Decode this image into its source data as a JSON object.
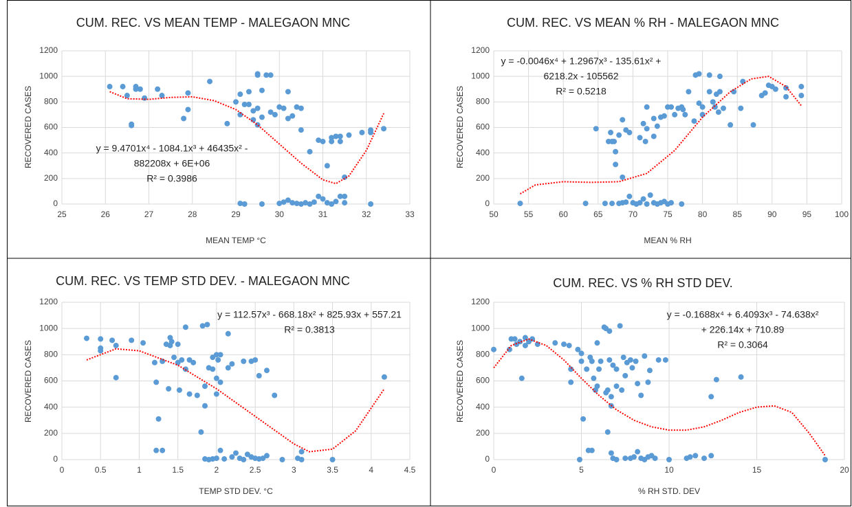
{
  "chart_data": [
    {
      "type": "scatter",
      "title": "CUM. REC. VS MEAN TEMP - MALEGAON MNC",
      "x_label": "MEAN TEMP °C",
      "y_label": "RECOVERED  CASES",
      "equation": [
        "y = 9.4701x⁴ - 1084.1x³ + 46435x² -",
        "882208x + 6E+06",
        "R² = 0.3986"
      ],
      "color": "#5b9bd5",
      "grid": true,
      "x": [
        26.1,
        26.4,
        26.5,
        26.6,
        26.6,
        26.7,
        26.7,
        26.8,
        26.9,
        27.2,
        27.3,
        27.8,
        27.9,
        27.9,
        28.4,
        28.8,
        29,
        29.1,
        29.1,
        29.2,
        29.3,
        29.3,
        29.4,
        29.4,
        29.5,
        29.5,
        29.5,
        29.5,
        29.6,
        29.6,
        29.7,
        29.8,
        29.8,
        29.9,
        30,
        30.1,
        30.2,
        30.2,
        30.3,
        30.4,
        30.5,
        30.5,
        30.7,
        30.9,
        31,
        31.1,
        31.2,
        31.2,
        31.3,
        31.4,
        31.4,
        31.5,
        31.6,
        31.9,
        32.1,
        32.1,
        32.4,
        29.1,
        29.2,
        29.6,
        30,
        30.1,
        30.2,
        30.3,
        30.4,
        30.5,
        30.6,
        30.7,
        30.8,
        30.9,
        31,
        31.1,
        31.2,
        31.3,
        31.4,
        31.5,
        31.5,
        32.1
      ],
      "values": [
        920,
        920,
        850,
        625,
        615,
        920,
        900,
        900,
        830,
        900,
        850,
        670,
        740,
        870,
        960,
        630,
        800,
        860,
        700,
        780,
        880,
        780,
        730,
        660,
        1010,
        1020,
        750,
        620,
        890,
        680,
        1010,
        720,
        1010,
        700,
        760,
        750,
        670,
        880,
        690,
        760,
        750,
        580,
        410,
        500,
        490,
        300,
        520,
        490,
        530,
        490,
        530,
        210,
        540,
        560,
        560,
        580,
        590,
        5,
        0,
        0,
        5,
        15,
        30,
        10,
        5,
        0,
        10,
        0,
        15,
        60,
        40,
        10,
        0,
        20,
        60,
        60,
        10,
        0
      ],
      "trendline": {
        "color": "#ff0000",
        "x": [
          26.1,
          26.5,
          27,
          27.5,
          28,
          28.5,
          29,
          29.5,
          30,
          30.5,
          31,
          31.3,
          31.6,
          32,
          32.4
        ],
        "values": [
          880,
          825,
          820,
          835,
          840,
          810,
          740,
          620,
          470,
          320,
          190,
          160,
          220,
          420,
          710
        ]
      },
      "xlim": [
        25,
        33
      ],
      "xticks": [
        25,
        26,
        27,
        28,
        29,
        30,
        31,
        32,
        33
      ],
      "ylim": [
        0,
        1200
      ],
      "yticks": [
        0,
        200,
        400,
        600,
        800,
        1000,
        1200
      ]
    },
    {
      "type": "scatter",
      "title": "CUM. REC. VS MEAN % RH - MALEGAON MNC",
      "x_label": "MEAN % RH",
      "y_label": "RECOVERED  CASES",
      "equation": [
        "y = -0.0046x⁴ + 1.2967x³ - 135.61x² +",
        "6218.2x - 105562",
        "R² = 0.5218"
      ],
      "color": "#5b9bd5",
      "grid": true,
      "x": [
        53.8,
        63.2,
        66,
        67,
        68,
        68.5,
        69,
        69.5,
        70,
        70.5,
        71,
        71.5,
        72,
        72.5,
        73,
        73.5,
        74,
        74.5,
        75,
        75.5,
        77,
        64.7,
        66.5,
        66.8,
        67,
        67.3,
        67.5,
        67.5,
        68,
        68.5,
        68.5,
        69,
        69.5,
        71,
        71.5,
        71.8,
        72,
        72,
        73,
        73,
        73.5,
        74,
        74.5,
        75,
        75.5,
        76,
        76.5,
        77,
        77.2,
        77.5,
        78,
        78.8,
        79,
        79.5,
        79.5,
        80,
        80,
        81,
        81,
        81.5,
        81.8,
        82,
        82.3,
        82.5,
        82.5,
        83,
        84,
        84.5,
        85.5,
        85.8,
        87.3,
        88.5,
        89,
        89.5,
        90,
        90.5,
        92,
        92,
        94.2,
        94.2
      ],
      "values": [
        5,
        5,
        5,
        5,
        5,
        10,
        15,
        60,
        10,
        0,
        10,
        40,
        0,
        70,
        10,
        0,
        10,
        20,
        0,
        10,
        0,
        590,
        490,
        560,
        490,
        490,
        410,
        310,
        540,
        660,
        210,
        580,
        560,
        520,
        630,
        490,
        590,
        760,
        530,
        670,
        610,
        680,
        690,
        760,
        760,
        700,
        750,
        760,
        740,
        700,
        880,
        650,
        1010,
        1020,
        790,
        760,
        700,
        1010,
        880,
        800,
        760,
        860,
        720,
        1000,
        880,
        750,
        620,
        880,
        750,
        960,
        620,
        850,
        870,
        930,
        920,
        900,
        840,
        910,
        850,
        920
      ],
      "trendline": {
        "color": "#ff0000",
        "x": [
          53.8,
          56,
          60,
          64,
          68,
          72,
          76,
          80,
          84,
          87,
          89.5,
          92,
          94.2
        ],
        "values": [
          80,
          150,
          175,
          170,
          175,
          240,
          420,
          680,
          880,
          980,
          1000,
          920,
          770
        ]
      },
      "xlim": [
        50,
        100
      ],
      "xticks": [
        50,
        55,
        60,
        65,
        70,
        75,
        80,
        85,
        90,
        95,
        100
      ],
      "ylim": [
        0,
        1200
      ],
      "yticks": [
        0,
        200,
        400,
        600,
        800,
        1000,
        1200
      ]
    },
    {
      "type": "scatter",
      "title": "CUM. REC. VS TEMP STD DEV.  - MALEGAON MNC",
      "x_label": "TEMP STD DEV. °C",
      "y_label": "RECOVERED  CASES",
      "equation": [
        "y = 112.57x³ - 668.18x² + 825.93x + 557.21",
        "R² = 0.3813"
      ],
      "color": "#5b9bd5",
      "grid": true,
      "x": [
        0.32,
        0.5,
        0.5,
        0.5,
        0.65,
        0.7,
        0.7,
        0.9,
        1.05,
        1.2,
        1.22,
        1.25,
        1.22,
        1.3,
        1.3,
        1.35,
        1.38,
        1.4,
        1.4,
        1.42,
        1.45,
        1.5,
        1.5,
        1.52,
        1.55,
        1.6,
        1.6,
        1.65,
        1.65,
        1.7,
        1.75,
        1.8,
        1.82,
        1.85,
        1.85,
        1.88,
        1.9,
        1.95,
        1.95,
        2,
        2,
        2,
        2.02,
        2.05,
        2.05,
        2.15,
        2.15,
        2.2,
        2.35,
        2.45,
        2.5,
        2.55,
        2.65,
        2.75,
        4.17,
        1.85,
        1.9,
        1.95,
        2.0,
        2.05,
        2.1,
        2.2,
        2.25,
        2.3,
        2.35,
        2.4,
        2.45,
        2.5,
        2.55,
        2.6,
        2.65,
        2.85,
        3.05,
        3.1,
        3.1,
        3.5
      ],
      "values": [
        925,
        920,
        850,
        830,
        910,
        870,
        625,
        910,
        890,
        740,
        590,
        310,
        70,
        70,
        750,
        880,
        540,
        930,
        870,
        900,
        780,
        880,
        740,
        530,
        760,
        1010,
        690,
        760,
        500,
        740,
        490,
        210,
        1020,
        560,
        410,
        1030,
        700,
        690,
        780,
        800,
        620,
        500,
        760,
        800,
        590,
        960,
        700,
        730,
        750,
        750,
        760,
        640,
        680,
        490,
        630,
        5,
        0,
        5,
        10,
        70,
        5,
        20,
        50,
        10,
        0,
        40,
        20,
        10,
        5,
        10,
        30,
        0,
        10,
        60,
        0,
        0
      ],
      "trendline": {
        "color": "#ff0000",
        "x": [
          0.32,
          0.7,
          1.0,
          1.5,
          2,
          2.5,
          3,
          3.2,
          3.5,
          3.8,
          4.17
        ],
        "values": [
          760,
          845,
          830,
          720,
          540,
          330,
          120,
          60,
          80,
          220,
          540
        ]
      },
      "xlim": [
        0,
        4.5
      ],
      "xticks": [
        0,
        0.5,
        1,
        1.5,
        2,
        2.5,
        3,
        3.5,
        4,
        4.5
      ],
      "ylim": [
        0,
        1200
      ],
      "yticks": [
        0,
        200,
        400,
        600,
        800,
        1000,
        1200
      ]
    },
    {
      "type": "scatter",
      "title": "CUM. REC. VS % RH STD DEV.",
      "x_label": "% RH STD. DEV",
      "y_label": "RECOVERED  CASES",
      "equation": [
        "y = -0.1688x⁴ + 6.4093x³ - 74.638x²",
        "+ 226.14x + 710.89",
        "R² = 0.3064"
      ],
      "color": "#5b9bd5",
      "grid": true,
      "x": [
        0,
        0.9,
        1,
        1.2,
        1.3,
        1.5,
        1.6,
        1.8,
        2,
        2.2,
        2.5,
        3.5,
        4,
        4.3,
        4.4,
        4.4,
        4.8,
        5,
        5,
        5.1,
        5.3,
        5.5,
        5.6,
        5.7,
        5.8,
        5.9,
        5.9,
        6,
        6.1,
        6.3,
        6.4,
        6.4,
        6.5,
        6.6,
        6.6,
        6.5,
        6.7,
        6.7,
        6.8,
        7,
        7,
        7.3,
        7.4,
        7.5,
        7.6,
        7.8,
        7.9,
        8.1,
        8.2,
        8.4,
        8.6,
        8.8,
        8.9,
        9.4,
        9.8,
        12.4,
        12.7,
        14.1,
        7.2,
        1.8,
        4.9,
        5.4,
        5.6,
        6.7,
        6.8,
        7,
        7.5,
        7.8,
        8,
        8.2,
        8.4,
        8.6,
        8.8,
        9,
        9.2,
        10,
        11,
        11.2,
        11.5,
        12,
        12.4,
        18.9
      ],
      "values": [
        840,
        840,
        920,
        920,
        880,
        900,
        620,
        930,
        900,
        920,
        880,
        890,
        880,
        870,
        590,
        690,
        840,
        750,
        810,
        310,
        690,
        780,
        750,
        620,
        530,
        560,
        890,
        690,
        750,
        1010,
        1000,
        510,
        210,
        760,
        980,
        530,
        480,
        410,
        720,
        560,
        690,
        530,
        780,
        640,
        740,
        760,
        700,
        750,
        580,
        490,
        790,
        590,
        680,
        760,
        760,
        480,
        610,
        630,
        1020,
        870,
        0,
        70,
        70,
        50,
        10,
        0,
        10,
        10,
        20,
        60,
        10,
        0,
        20,
        30,
        10,
        0,
        10,
        20,
        30,
        10,
        30,
        0
      ],
      "trendline": {
        "color": "#ff0000",
        "x": [
          0,
          1,
          2,
          3,
          4,
          5,
          6,
          7,
          8,
          9,
          10,
          11,
          12,
          13,
          14,
          15,
          16,
          17,
          18,
          18.9
        ],
        "values": [
          700,
          870,
          920,
          870,
          760,
          620,
          490,
          380,
          300,
          250,
          225,
          225,
          250,
          300,
          360,
          400,
          410,
          360,
          200,
          30
        ]
      },
      "xlim": [
        0,
        20
      ],
      "xticks": [
        0,
        5,
        10,
        15,
        20
      ],
      "ylim": [
        0,
        1200
      ],
      "yticks": [
        0,
        200,
        400,
        600,
        800,
        1000,
        1200
      ]
    }
  ]
}
